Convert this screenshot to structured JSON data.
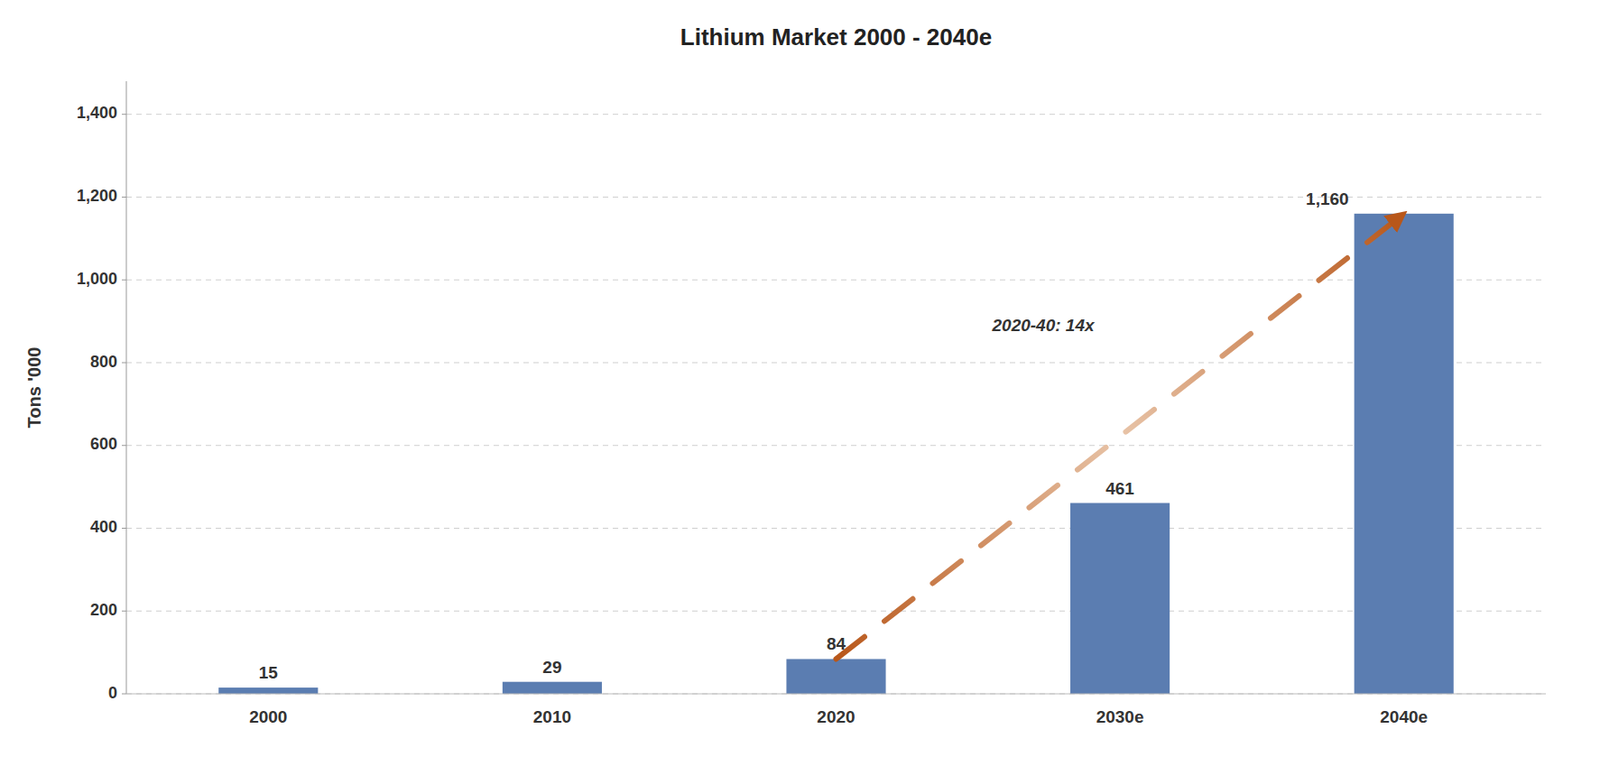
{
  "chart_data": {
    "type": "bar",
    "title": "Lithium Market 2000 - 2040e",
    "categories": [
      "2000",
      "2010",
      "2020",
      "2030e",
      "2040e"
    ],
    "values": [
      15,
      29,
      84,
      461,
      1160
    ],
    "value_labels": [
      "15",
      "29",
      "84",
      "461",
      "1,160"
    ],
    "data_labels": true,
    "color": "#5B7DB1",
    "ylabel": "Tons '000",
    "annotation": "2020-40: 14x",
    "ylim": [
      0,
      1480
    ],
    "yticks": [
      0,
      200,
      400,
      600,
      800,
      {
        "value": 1000,
        "label": "1,000"
      },
      {
        "value": 1200,
        "label": "1,200"
      },
      {
        "value": 1400,
        "label": "1,400"
      }
    ],
    "grid": true
  }
}
